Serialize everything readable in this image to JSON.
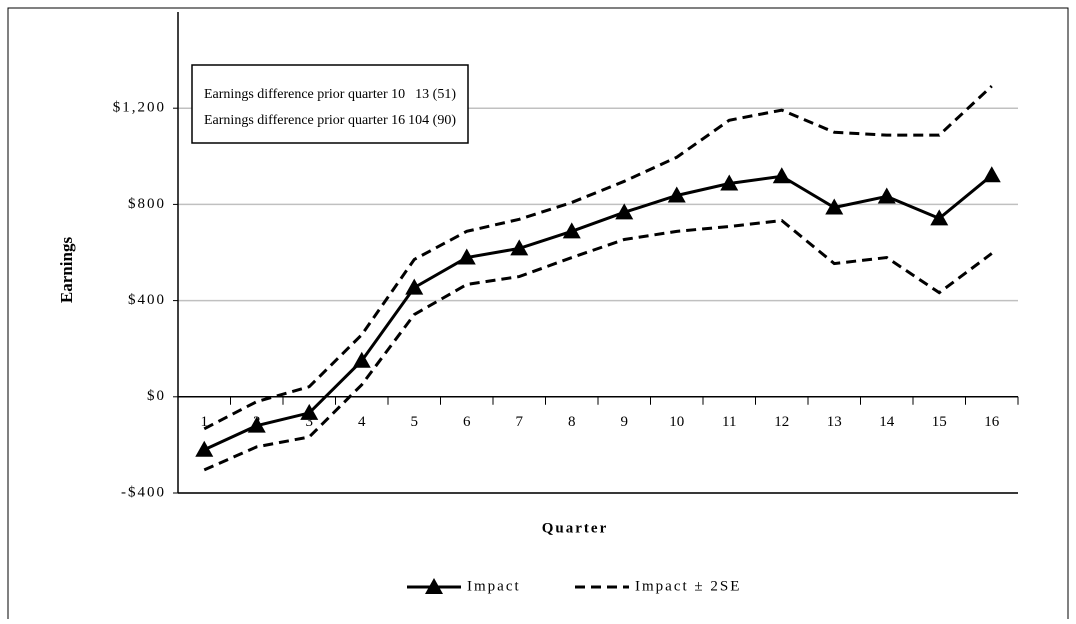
{
  "chart_data": {
    "type": "line",
    "x_label": "Quarter",
    "y_label": "Earnings",
    "categories": [
      "1",
      "2",
      "3",
      "4",
      "5",
      "6",
      "7",
      "8",
      "9",
      "10",
      "11",
      "12",
      "13",
      "14",
      "15",
      "16"
    ],
    "ylim": [
      -400,
      1600
    ],
    "yticks": [
      {
        "value": -400,
        "label": "-$400"
      },
      {
        "value": 0,
        "label": "$0"
      },
      {
        "value": 400,
        "label": "$400"
      },
      {
        "value": 800,
        "label": "$800"
      },
      {
        "value": 1200,
        "label": "$1,200"
      }
    ],
    "grid": true,
    "series": [
      {
        "name": "Impact",
        "color": "#000000",
        "style": "solid",
        "marker": "triangle",
        "values": [
          -220,
          -120,
          -67,
          150,
          454,
          579,
          617,
          688,
          767,
          837,
          887,
          917,
          787,
          833,
          742,
          921
        ]
      },
      {
        "name": "Impact ± 2SE",
        "color": "#000000",
        "style": "dashed",
        "upper": [
          -133,
          -20,
          42,
          258,
          571,
          688,
          738,
          808,
          896,
          996,
          1150,
          1192,
          1100,
          1088,
          1088,
          1292
        ],
        "lower": [
          -304,
          -208,
          -167,
          50,
          342,
          467,
          500,
          579,
          654,
          688,
          708,
          733,
          554,
          579,
          433,
          596
        ]
      }
    ],
    "annotation": {
      "rows": [
        [
          "Earnings difference prior quarter 10",
          "13 (51)"
        ],
        [
          "Earnings difference prior quarter 16",
          "104 (90)"
        ]
      ]
    }
  }
}
